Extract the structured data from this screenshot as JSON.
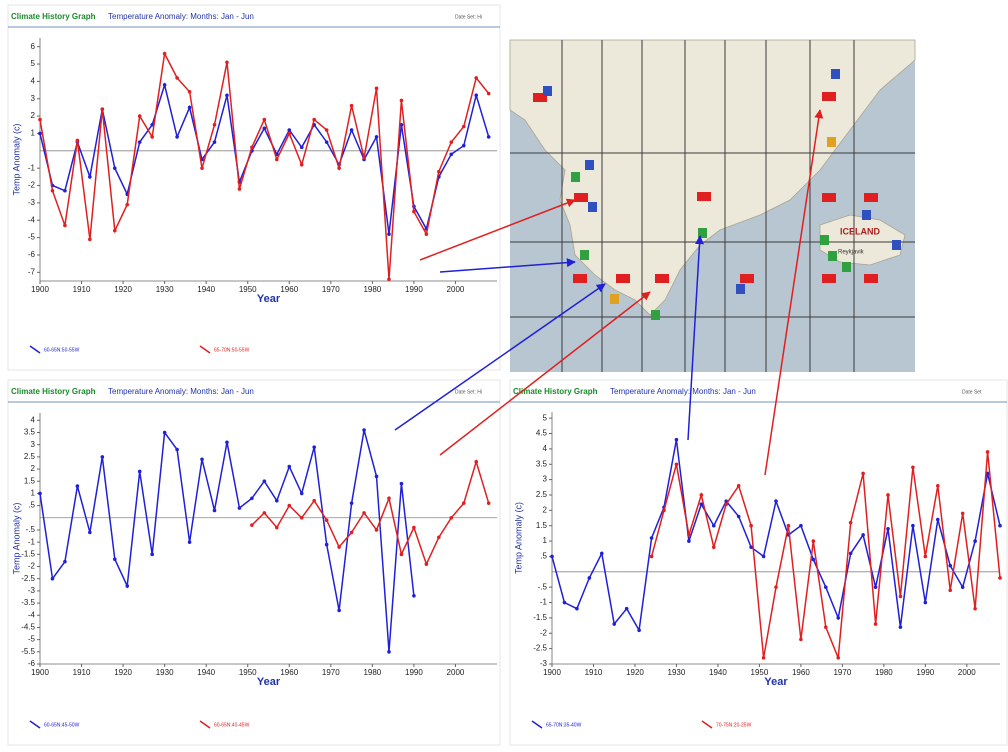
{
  "chart_data": [
    {
      "type": "line",
      "title": "Climate History Graph",
      "subtitle": "Temperature Anomaly: Months: Jan - Jun",
      "data_set": "Date Set: Hi",
      "x_label": "Year",
      "y_label": "Temp Anomaly (c)",
      "xlim": [
        1900,
        2010
      ],
      "xticks": [
        1900,
        1910,
        1920,
        1930,
        1940,
        1950,
        1960,
        1970,
        1980,
        1990,
        2000
      ],
      "ylim": [
        -7.5,
        6.5
      ],
      "yticks": [
        6,
        5,
        4,
        3,
        2,
        1,
        -1,
        -2,
        -3,
        -4,
        -5,
        -6,
        -7
      ],
      "series": [
        {
          "name": "60-65N:50-55W",
          "color": "#2020d8",
          "x": [
            1900,
            1903,
            1906,
            1909,
            1912,
            1915,
            1918,
            1921,
            1924,
            1927,
            1930,
            1933,
            1936,
            1939,
            1942,
            1945,
            1948,
            1951,
            1954,
            1957,
            1960,
            1963,
            1966,
            1969,
            1972,
            1975,
            1978,
            1981,
            1984,
            1987,
            1990,
            1993,
            1996,
            1999,
            2002,
            2005,
            2008
          ],
          "values": [
            1,
            -2,
            -2.3,
            0.5,
            -1.5,
            2.4,
            -1,
            -2.5,
            0.5,
            1.5,
            3.8,
            0.8,
            2.5,
            -0.5,
            0.5,
            3.2,
            -1.8,
            0,
            1.3,
            -0.2,
            1.2,
            0.2,
            1.5,
            0.5,
            -0.8,
            1.2,
            -0.5,
            0.8,
            -4.8,
            1.5,
            -3.2,
            -4.5,
            -1.5,
            -0.2,
            0.3,
            3.2,
            0.8
          ]
        },
        {
          "name": "65-70N:50-55W",
          "color": "#e02020",
          "x": [
            1900,
            1903,
            1906,
            1909,
            1912,
            1915,
            1918,
            1921,
            1924,
            1927,
            1930,
            1933,
            1936,
            1939,
            1942,
            1945,
            1948,
            1951,
            1954,
            1957,
            1960,
            1963,
            1966,
            1969,
            1972,
            1975,
            1978,
            1981,
            1984,
            1987,
            1990,
            1993,
            1996,
            1999,
            2002,
            2005,
            2008
          ],
          "values": [
            1.8,
            -2.3,
            -4.3,
            0.6,
            -5.1,
            2.4,
            -4.6,
            -3.1,
            2,
            0.8,
            5.6,
            4.2,
            3.4,
            -1,
            1.5,
            5.1,
            -2.2,
            0.2,
            1.8,
            -0.5,
            1,
            -0.8,
            1.8,
            1.2,
            -1,
            2.6,
            -0.4,
            3.6,
            -7.4,
            2.9,
            -3.5,
            -4.8,
            -1.2,
            0.5,
            1.4,
            4.2,
            3.3
          ]
        }
      ]
    },
    {
      "type": "line",
      "title": "Climate History Graph",
      "subtitle": "Temperature Anomaly: Months: Jan - Jun",
      "data_set": "Date Set: Hi",
      "x_label": "Year",
      "y_label": "Temp Anomaly (c)",
      "xlim": [
        1900,
        2010
      ],
      "xticks": [
        1900,
        1910,
        1920,
        1930,
        1940,
        1950,
        1960,
        1970,
        1980,
        1990,
        2000
      ],
      "ylim": [
        -6,
        4.3
      ],
      "yticks": [
        4,
        3.5,
        3,
        2.5,
        2,
        1.5,
        1,
        {
          "value": 0.5,
          "label": ".5"
        },
        {
          "value": -0.5,
          "label": "-.5"
        },
        -1,
        -1.5,
        -2,
        -2.5,
        -3,
        -3.5,
        -4,
        -4.5,
        -5,
        -5.5,
        -6
      ],
      "series": [
        {
          "name": "60-65N:45-50W",
          "color": "#2020d8",
          "x": [
            1900,
            1903,
            1906,
            1909,
            1912,
            1915,
            1918,
            1921,
            1924,
            1927,
            1930,
            1933,
            1936,
            1939,
            1942,
            1945,
            1948,
            1951,
            1954,
            1957,
            1960,
            1963,
            1966,
            1969,
            1972,
            1975,
            1978,
            1981,
            1984,
            1987,
            1990
          ],
          "values": [
            1,
            -2.5,
            -1.8,
            1.3,
            -0.6,
            2.5,
            -1.7,
            -2.8,
            1.9,
            -1.5,
            3.5,
            2.8,
            -1,
            2.4,
            0.3,
            3.1,
            0.4,
            0.8,
            1.5,
            0.7,
            2.1,
            1,
            2.9,
            -1.1,
            -3.8,
            0.6,
            3.6,
            1.7,
            -5.5,
            1.4,
            -3.2
          ]
        },
        {
          "name": "60-65N:40-45W",
          "color": "#e02020",
          "x": [
            1951,
            1954,
            1957,
            1960,
            1963,
            1966,
            1969,
            1972,
            1975,
            1978,
            1981,
            1984,
            1987,
            1990,
            1993,
            1996,
            1999,
            2002,
            2005,
            2008
          ],
          "values": [
            -0.3,
            0.2,
            -0.4,
            0.5,
            0,
            0.7,
            -0.1,
            -1.2,
            -0.6,
            0.2,
            -0.5,
            0.8,
            -1.5,
            -0.4,
            -1.9,
            -0.8,
            0,
            0.6,
            2.3,
            0.6
          ]
        }
      ]
    },
    {
      "type": "line",
      "title": "Climate History Graph",
      "subtitle": "Temperature Anomaly: Months: Jan - Jun",
      "data_set": "Date Set",
      "x_label": "Year",
      "y_label": "Temp Anomaly (c)",
      "xlim": [
        1900,
        2008
      ],
      "xticks": [
        1900,
        1910,
        1920,
        1930,
        1940,
        1950,
        1960,
        1970,
        1980,
        1990,
        2000
      ],
      "ylim": [
        -3,
        5.2
      ],
      "yticks": [
        5,
        4.5,
        4,
        3.5,
        3,
        2.5,
        2,
        1.5,
        1,
        {
          "value": 0.5,
          "label": ".5"
        },
        {
          "value": -0.5,
          "label": "-.5"
        },
        -1,
        -1.5,
        -2,
        -2.5,
        -3
      ],
      "series": [
        {
          "name": "65-70N:35-40W",
          "color": "#2020d8",
          "x": [
            1900,
            1903,
            1906,
            1909,
            1912,
            1915,
            1918,
            1921,
            1924,
            1927,
            1930,
            1933,
            1936,
            1939,
            1942,
            1945,
            1948,
            1951,
            1954,
            1957,
            1960,
            1963,
            1966,
            1969,
            1972,
            1975,
            1978,
            1981,
            1984,
            1987,
            1990,
            1993,
            1996,
            1999,
            2002,
            2005,
            2008
          ],
          "values": [
            0.5,
            -1,
            -1.2,
            -0.2,
            0.6,
            -1.7,
            -1.2,
            -1.9,
            1.1,
            2.1,
            4.3,
            1,
            2.2,
            1.5,
            2.3,
            1.8,
            0.8,
            0.5,
            2.3,
            1.2,
            1.5,
            0.4,
            -0.5,
            -1.5,
            0.6,
            1.2,
            -0.5,
            1.4,
            -1.8,
            1.5,
            -1,
            1.7,
            0.2,
            -0.5,
            1,
            3.2,
            1.5
          ]
        },
        {
          "name": "70-75N:20-25W",
          "color": "#e02020",
          "x": [
            1924,
            1927,
            1930,
            1933,
            1936,
            1939,
            1942,
            1945,
            1948,
            1951,
            1954,
            1957,
            1960,
            1963,
            1966,
            1969,
            1972,
            1975,
            1978,
            1981,
            1984,
            1987,
            1990,
            1993,
            1996,
            1999,
            2002,
            2005,
            2008
          ],
          "values": [
            0.5,
            2,
            3.5,
            1.2,
            2.5,
            0.8,
            2.2,
            2.8,
            1.5,
            -2.8,
            -0.5,
            1.5,
            -2.2,
            1,
            -1.8,
            -2.8,
            1.6,
            3.2,
            -1.7,
            2.5,
            -0.8,
            3.4,
            0.5,
            2.8,
            -0.6,
            1.9,
            -1.2,
            3.9,
            -0.2
          ]
        }
      ]
    }
  ],
  "map": {
    "country": "ICELAND",
    "city": "Reykjavik"
  }
}
